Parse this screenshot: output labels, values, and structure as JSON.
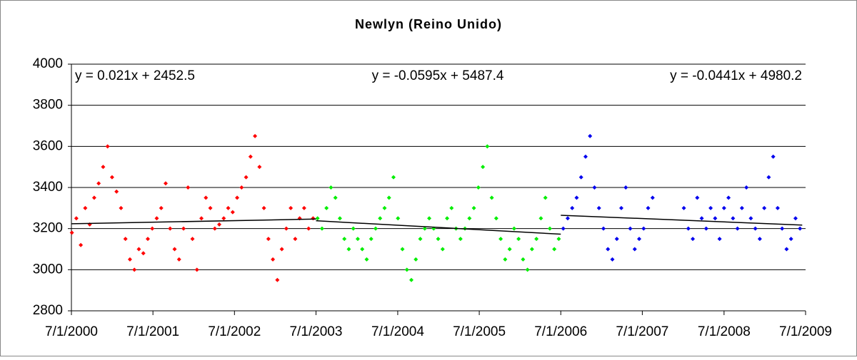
{
  "chart_data": {
    "type": "scatter",
    "title": "Newlyn (Reino Unido)",
    "xlim": [
      36708,
      39995
    ],
    "xticks": [
      {
        "value": 36708,
        "label": "7/1/2000"
      },
      {
        "value": 37073,
        "label": "7/1/2001"
      },
      {
        "value": 37438,
        "label": "7/1/2002"
      },
      {
        "value": 37803,
        "label": "7/1/2003"
      },
      {
        "value": 38169,
        "label": "7/1/2004"
      },
      {
        "value": 38534,
        "label": "7/1/2005"
      },
      {
        "value": 38899,
        "label": "7/1/2006"
      },
      {
        "value": 39264,
        "label": "7/1/2007"
      },
      {
        "value": 39630,
        "label": "7/1/2008"
      },
      {
        "value": 39995,
        "label": "7/1/2009"
      }
    ],
    "ylim": [
      2800,
      4000
    ],
    "yticks": [
      2800,
      3000,
      3200,
      3400,
      3600,
      3800,
      4000
    ],
    "grid": true,
    "series": [
      {
        "color": "#ff0000",
        "x": [
          36710,
          36730,
          36750,
          36770,
          36790,
          36810,
          36830,
          36850,
          36870,
          36890,
          36910,
          36930,
          36950,
          36970,
          36990,
          37010,
          37030,
          37050,
          37070,
          37090,
          37110,
          37130,
          37150,
          37170,
          37190,
          37210,
          37230,
          37250,
          37270,
          37290,
          37310,
          37330,
          37350,
          37370,
          37390,
          37410,
          37430,
          37450,
          37470,
          37490,
          37510,
          37530,
          37550,
          37570,
          37590,
          37610,
          37630,
          37650,
          37670,
          37690,
          37710,
          37730,
          37750,
          37770,
          37790
        ],
        "values": [
          3180,
          3250,
          3120,
          3300,
          3220,
          3350,
          3420,
          3500,
          3600,
          3450,
          3380,
          3300,
          3150,
          3050,
          3000,
          3100,
          3080,
          3150,
          3200,
          3250,
          3300,
          3420,
          3200,
          3100,
          3050,
          3200,
          3400,
          3150,
          3000,
          3250,
          3350,
          3300,
          3200,
          3220,
          3250,
          3300,
          3280,
          3350,
          3400,
          3450,
          3550,
          3650,
          3500,
          3300,
          3150,
          3050,
          2950,
          3100,
          3200,
          3300,
          3150,
          3250,
          3300,
          3200,
          3250
        ]
      },
      {
        "color": "#00ee00",
        "x": [
          37810,
          37830,
          37850,
          37870,
          37890,
          37910,
          37930,
          37950,
          37970,
          37990,
          38010,
          38030,
          38050,
          38070,
          38090,
          38110,
          38130,
          38150,
          38170,
          38190,
          38210,
          38230,
          38250,
          38270,
          38290,
          38310,
          38330,
          38350,
          38370,
          38390,
          38410,
          38430,
          38450,
          38470,
          38490,
          38510,
          38530,
          38550,
          38570,
          38590,
          38610,
          38630,
          38650,
          38670,
          38690,
          38710,
          38730,
          38750,
          38770,
          38790,
          38810,
          38830,
          38850,
          38870,
          38890
        ],
        "values": [
          3250,
          3200,
          3300,
          3400,
          3350,
          3250,
          3150,
          3100,
          3200,
          3150,
          3100,
          3050,
          3150,
          3200,
          3250,
          3300,
          3350,
          3450,
          3250,
          3100,
          3000,
          2950,
          3050,
          3150,
          3200,
          3250,
          3200,
          3150,
          3100,
          3250,
          3300,
          3200,
          3150,
          3200,
          3250,
          3300,
          3400,
          3500,
          3600,
          3350,
          3250,
          3150,
          3050,
          3100,
          3200,
          3150,
          3050,
          3000,
          3100,
          3150,
          3250,
          3350,
          3200,
          3100,
          3150
        ]
      },
      {
        "color": "#0000ee",
        "x": [
          38910,
          38930,
          38950,
          38970,
          38990,
          39010,
          39030,
          39050,
          39070,
          39090,
          39110,
          39130,
          39150,
          39170,
          39190,
          39210,
          39230,
          39250,
          39270,
          39290,
          39310,
          39450,
          39470,
          39490,
          39510,
          39530,
          39550,
          39570,
          39590,
          39610,
          39630,
          39650,
          39670,
          39690,
          39710,
          39730,
          39750,
          39770,
          39790,
          39810,
          39830,
          39850,
          39870,
          39890,
          39910,
          39930,
          39950,
          39970
        ],
        "values": [
          3200,
          3250,
          3300,
          3350,
          3450,
          3550,
          3650,
          3400,
          3300,
          3200,
          3100,
          3050,
          3150,
          3300,
          3400,
          3200,
          3100,
          3150,
          3200,
          3300,
          3350,
          3300,
          3200,
          3150,
          3350,
          3250,
          3200,
          3300,
          3250,
          3150,
          3300,
          3350,
          3250,
          3200,
          3300,
          3400,
          3250,
          3200,
          3150,
          3300,
          3450,
          3550,
          3300,
          3200,
          3100,
          3150,
          3250,
          3200
        ]
      }
    ],
    "trendlines": [
      {
        "equation": "y = 0.021x + 2452.5",
        "x": [
          36708,
          37803
        ],
        "y": [
          3223.4,
          3246.4
        ]
      },
      {
        "equation": "y = -0.0595x + 5487.4",
        "x": [
          37803,
          38899
        ],
        "y": [
          3238.1,
          3172.9
        ]
      },
      {
        "equation": "y = -0.0441x + 4980.2",
        "x": [
          38899,
          39980
        ],
        "y": [
          3264.9,
          3217.2
        ]
      }
    ]
  }
}
